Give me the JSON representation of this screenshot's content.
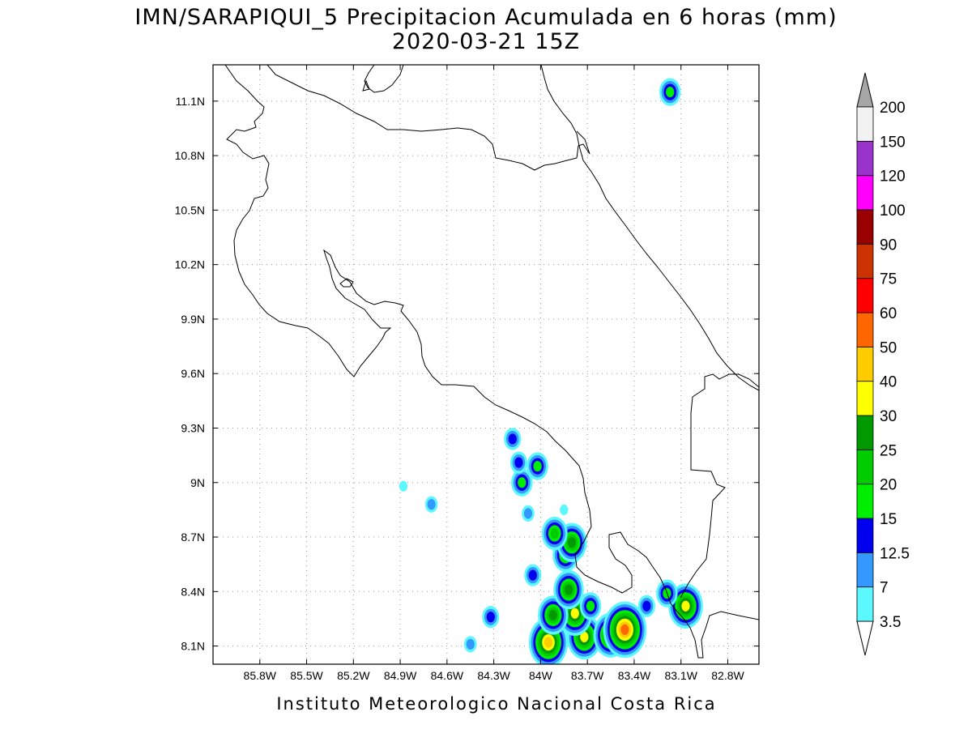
{
  "title": {
    "line1": "IMN/SARAPIQUI_5 Precipitacion Acumulada en 6 horas (mm)",
    "line2": "2020-03-21 15Z"
  },
  "footer": "Instituto Meteorologico Nacional Costa Rica",
  "map": {
    "lon_range": [
      -86.1,
      -82.6
    ],
    "lat_range": [
      8.0,
      11.3
    ],
    "lon_ticks": [
      {
        "value": -85.8,
        "label": "85.8W"
      },
      {
        "value": -85.5,
        "label": "85.5W"
      },
      {
        "value": -85.2,
        "label": "85.2W"
      },
      {
        "value": -84.9,
        "label": "84.9W"
      },
      {
        "value": -84.6,
        "label": "84.6W"
      },
      {
        "value": -84.3,
        "label": "84.3W"
      },
      {
        "value": -84.0,
        "label": "84W"
      },
      {
        "value": -83.7,
        "label": "83.7W"
      },
      {
        "value": -83.4,
        "label": "83.4W"
      },
      {
        "value": -83.1,
        "label": "83.1W"
      },
      {
        "value": -82.8,
        "label": "82.8W"
      }
    ],
    "lat_ticks": [
      {
        "value": 8.1,
        "label": "8.1N"
      },
      {
        "value": 8.4,
        "label": "8.4N"
      },
      {
        "value": 8.7,
        "label": "8.7N"
      },
      {
        "value": 9.0,
        "label": "9N"
      },
      {
        "value": 9.3,
        "label": "9.3N"
      },
      {
        "value": 9.6,
        "label": "9.6N"
      },
      {
        "value": 9.9,
        "label": "9.9N"
      },
      {
        "value": 10.2,
        "label": "10.2N"
      },
      {
        "value": 10.5,
        "label": "10.5N"
      },
      {
        "value": 10.8,
        "label": "10.8N"
      },
      {
        "value": 11.1,
        "label": "11.1N"
      }
    ],
    "grid": true
  },
  "colorbar": {
    "levels": [
      "3.5",
      "7",
      "12.5",
      "15",
      "20",
      "25",
      "30",
      "40",
      "50",
      "60",
      "75",
      "90",
      "100",
      "120",
      "150",
      "200"
    ],
    "colors": [
      "#5cf8ff",
      "#3399ff",
      "#0000ee",
      "#00ee00",
      "#00cc00",
      "#009900",
      "#ffff00",
      "#ffcc00",
      "#ff6600",
      "#ff0000",
      "#cc3300",
      "#990000",
      "#ff00ff",
      "#9933cc",
      "#f2f2f2"
    ],
    "under_color": "#ffffff",
    "over_color": "#a6a6a6"
  },
  "precip_cells": [
    {
      "lon": -83.95,
      "lat": 8.12,
      "level": 7
    },
    {
      "lon": -83.72,
      "lat": 8.15,
      "level": 6
    },
    {
      "lon": -83.55,
      "lat": 8.16,
      "level": 6
    },
    {
      "lon": -83.46,
      "lat": 8.19,
      "level": 8
    },
    {
      "lon": -83.78,
      "lat": 8.28,
      "level": 6
    },
    {
      "lon": -83.92,
      "lat": 8.27,
      "level": 5
    },
    {
      "lon": -83.82,
      "lat": 8.41,
      "level": 5
    },
    {
      "lon": -83.68,
      "lat": 8.32,
      "level": 3
    },
    {
      "lon": -83.84,
      "lat": 8.6,
      "level": 4
    },
    {
      "lon": -83.8,
      "lat": 8.67,
      "level": 5
    },
    {
      "lon": -83.91,
      "lat": 8.72,
      "level": 4
    },
    {
      "lon": -84.12,
      "lat": 9.0,
      "level": 3
    },
    {
      "lon": -84.18,
      "lat": 9.24,
      "level": 2
    },
    {
      "lon": -84.14,
      "lat": 9.11,
      "level": 2
    },
    {
      "lon": -84.02,
      "lat": 9.09,
      "level": 3
    },
    {
      "lon": -84.05,
      "lat": 8.49,
      "level": 2
    },
    {
      "lon": -83.07,
      "lat": 8.32,
      "level": 6
    },
    {
      "lon": -83.19,
      "lat": 8.39,
      "level": 3
    },
    {
      "lon": -83.32,
      "lat": 8.32,
      "level": 2
    },
    {
      "lon": -83.17,
      "lat": 11.15,
      "level": 3
    },
    {
      "lon": -84.88,
      "lat": 8.98,
      "level": 0
    },
    {
      "lon": -84.7,
      "lat": 8.88,
      "level": 1
    },
    {
      "lon": -84.32,
      "lat": 8.26,
      "level": 2
    },
    {
      "lon": -84.45,
      "lat": 8.11,
      "level": 1
    },
    {
      "lon": -84.08,
      "lat": 8.83,
      "level": 1
    },
    {
      "lon": -83.85,
      "lat": 8.85,
      "level": 0
    }
  ]
}
